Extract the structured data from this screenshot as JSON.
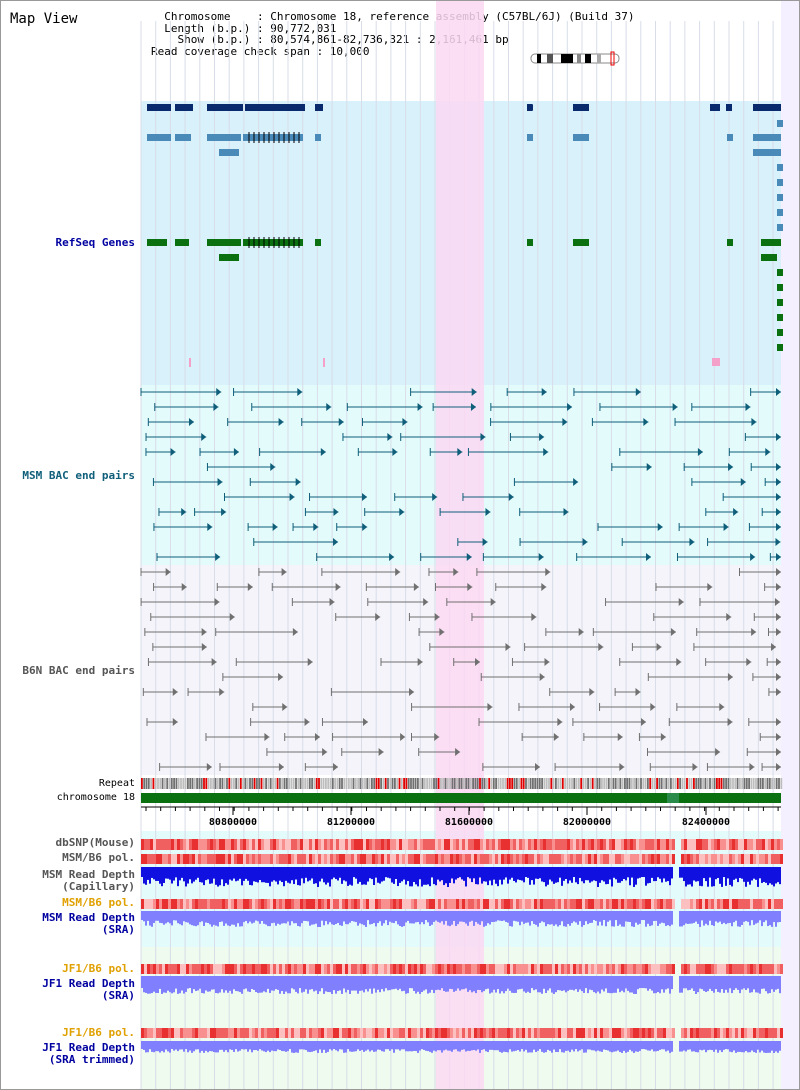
{
  "panel_title": "Map View",
  "info_lines": [
    "  Chromosome    : Chromosome 18, reference assembly (C57BL/6J) (Build 37)",
    "  Length (b.p.) : 90,772,031",
    "    Show (b.p.) : 80,574,861-82,736,321 : 2,161,461 bp",
    "Read coverage check span : 10,000"
  ],
  "track_labels": {
    "refseq": "RefSeq Genes",
    "msm_bac": "MSM BAC end pairs",
    "b6n_bac": "B6N BAC end pairs",
    "repeat": "Repeat",
    "chromosome": "chromosome 18",
    "dbsnp": "dbSNP(Mouse)",
    "msm_b6_pol": "MSM/B6 pol.",
    "msm_cap_depth": "MSM Read Depth\n(Capillary)",
    "msm_b6_pol_sra": "MSM/B6 pol.",
    "msm_sra_depth": "MSM Read Depth\n(SRA)",
    "jf1_b6_pol": "JF1/B6 pol.",
    "jf1_sra_depth": "JF1 Read Depth\n(SRA)",
    "jf1_b6_pol_trim": "JF1/B6 pol.",
    "jf1_trim_depth": "JF1 Read Depth\n(SRA trimmed)"
  },
  "axis_ticks": [
    "80800000",
    "81200000",
    "81600000",
    "82000000",
    "82400000"
  ],
  "colors": {
    "refseq_navy": "#0a2a6e",
    "refseq_blue": "#4a8ab8",
    "refseq_green": "#0a7010",
    "msm_bac": "#0f5e7a",
    "b6n_bac": "#707070",
    "highlight": "#fbd8f2",
    "depth": "#1010e0",
    "sra_depth": "#8080ff"
  }
}
